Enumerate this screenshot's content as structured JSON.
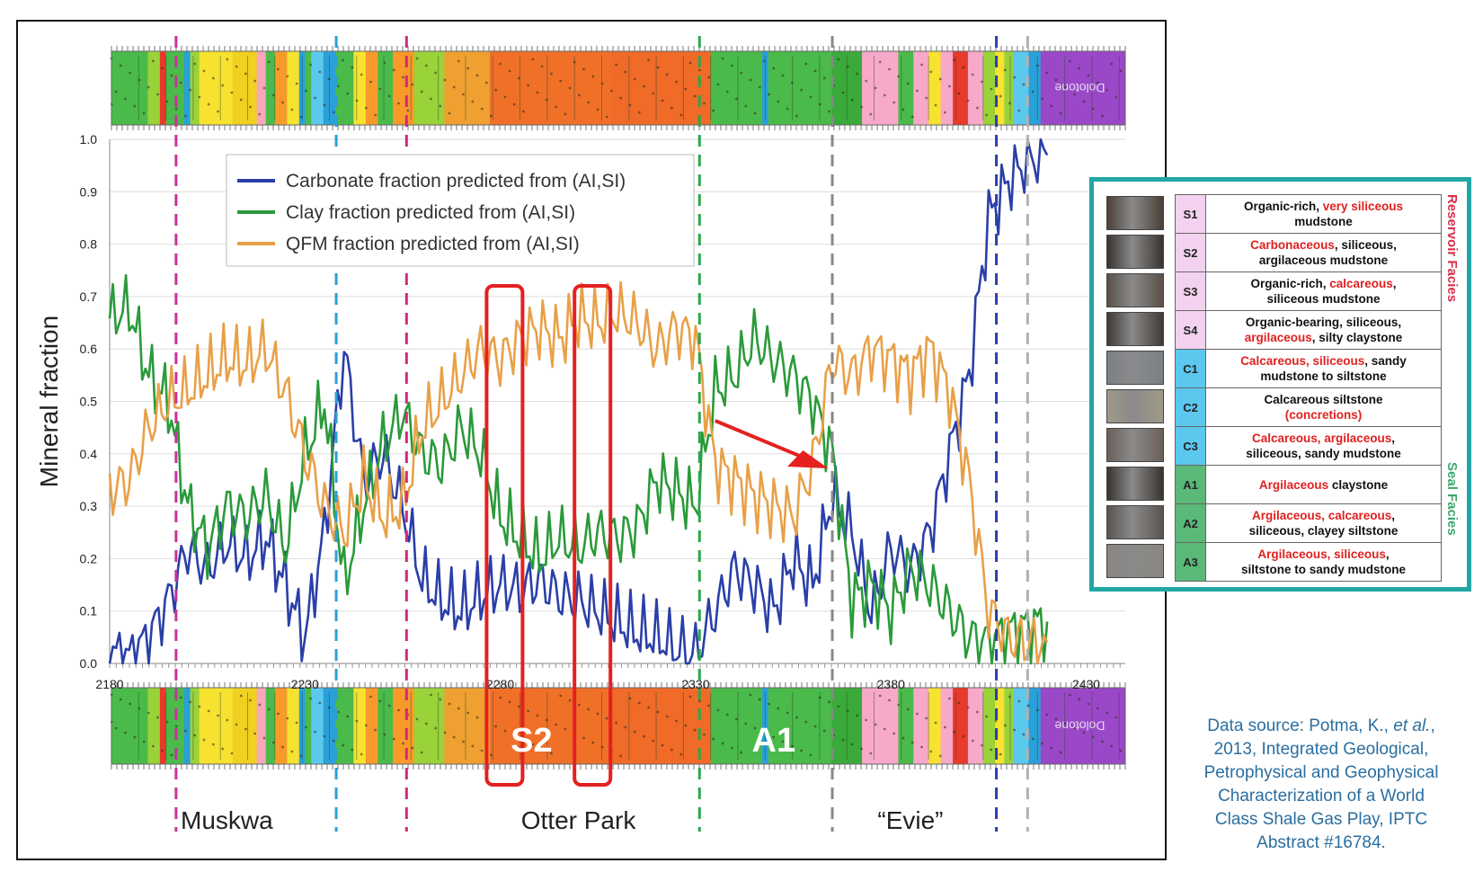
{
  "chart_data": {
    "type": "line",
    "title": "",
    "xlabel": "",
    "ylabel": "Mineral fraction",
    "xlim": [
      2180,
      2440
    ],
    "ylim": [
      0,
      1.0
    ],
    "x_ticks": [
      2180,
      2230,
      2280,
      2330,
      2380,
      2430
    ],
    "y_ticks": [
      0.0,
      0.1,
      0.2,
      0.3,
      0.4,
      0.5,
      0.6,
      0.7,
      0.8,
      0.9,
      1.0
    ],
    "y_tick_labels": [
      "0.0",
      "0.1",
      "0.2",
      "0.3",
      "0.4",
      "0.5",
      "0.6",
      "0.7",
      "0.8",
      "0.9",
      "1.0"
    ],
    "legend": [
      "Carbonate fraction predicted from (AI,SI)",
      "Clay fraction predicted from (AI,SI)",
      "QFM fraction predicted from (AI,SI)"
    ],
    "x": [
      2180,
      2185,
      2190,
      2195,
      2200,
      2205,
      2210,
      2215,
      2220,
      2225,
      2230,
      2235,
      2240,
      2245,
      2250,
      2255,
      2260,
      2265,
      2270,
      2275,
      2280,
      2285,
      2290,
      2295,
      2300,
      2305,
      2310,
      2315,
      2320,
      2325,
      2330,
      2335,
      2340,
      2345,
      2350,
      2355,
      2360,
      2365,
      2370,
      2375,
      2380,
      2385,
      2390,
      2395,
      2400,
      2405,
      2410,
      2415,
      2420
    ],
    "series": [
      {
        "name": "Carbonate fraction predicted from (AI,SI)",
        "color": "#2a3fa8",
        "values": [
          0.02,
          0.01,
          0.05,
          0.12,
          0.22,
          0.18,
          0.23,
          0.2,
          0.24,
          0.15,
          0.05,
          0.25,
          0.6,
          0.35,
          0.4,
          0.3,
          0.16,
          0.12,
          0.1,
          0.13,
          0.15,
          0.14,
          0.16,
          0.13,
          0.12,
          0.1,
          0.08,
          0.06,
          0.05,
          0.03,
          0.02,
          0.1,
          0.18,
          0.15,
          0.1,
          0.2,
          0.15,
          0.32,
          0.25,
          0.1,
          0.22,
          0.18,
          0.25,
          0.4,
          0.55,
          0.85,
          0.92,
          0.96,
          0.97
        ]
      },
      {
        "name": "Clay fraction predicted from (AI,SI)",
        "color": "#2a9a3a",
        "values": [
          0.66,
          0.68,
          0.55,
          0.5,
          0.3,
          0.22,
          0.3,
          0.28,
          0.32,
          0.22,
          0.4,
          0.5,
          0.15,
          0.3,
          0.42,
          0.48,
          0.4,
          0.38,
          0.45,
          0.4,
          0.28,
          0.24,
          0.2,
          0.24,
          0.22,
          0.25,
          0.24,
          0.26,
          0.35,
          0.33,
          0.3,
          0.52,
          0.55,
          0.62,
          0.58,
          0.55,
          0.5,
          0.4,
          0.12,
          0.15,
          0.1,
          0.18,
          0.15,
          0.1,
          0.05,
          0.04,
          0.06,
          0.07,
          0.08
        ]
      },
      {
        "name": "QFM fraction predicted from (AI,SI)",
        "color": "#e8a048",
        "values": [
          0.33,
          0.35,
          0.45,
          0.5,
          0.52,
          0.55,
          0.58,
          0.57,
          0.6,
          0.52,
          0.4,
          0.3,
          0.25,
          0.35,
          0.28,
          0.3,
          0.45,
          0.5,
          0.55,
          0.6,
          0.58,
          0.62,
          0.64,
          0.62,
          0.66,
          0.65,
          0.67,
          0.65,
          0.6,
          0.64,
          0.62,
          0.38,
          0.35,
          0.32,
          0.3,
          0.28,
          0.38,
          0.58,
          0.55,
          0.6,
          0.58,
          0.55,
          0.6,
          0.52,
          0.35,
          0.1,
          0.05,
          0.04,
          0.04
        ]
      }
    ],
    "boundaries": [
      {
        "x": 2197,
        "color": "#c8329a"
      },
      {
        "x": 2238,
        "color": "#2aa0d8"
      },
      {
        "x": 2256,
        "color": "#d02a7a"
      },
      {
        "x": 2331,
        "color": "#2aa84a"
      },
      {
        "x": 2365,
        "color": "#888888"
      },
      {
        "x": 2407,
        "color": "#2a3fa8"
      },
      {
        "x": 2415,
        "color": "#b0b0b0"
      }
    ],
    "formations": [
      "Muskwa",
      "Otter Park",
      "“Evie”"
    ],
    "zone_labels": [
      "S2",
      "A1"
    ],
    "strip_top_text": "Dolotone",
    "strip_bottom_text": "Dolotone"
  },
  "facies": {
    "reservoir_label": "Reservoir Facies",
    "seal_label": "Seal Facies",
    "rows": [
      {
        "code": "S1",
        "color": "#f2d2ee",
        "parts": [
          {
            "t": "Organic-rich, ",
            "h": false
          },
          {
            "t": "very siliceous",
            "h": true
          }
        ],
        "line2": [
          {
            "t": "mudstone",
            "h": false
          }
        ]
      },
      {
        "code": "S2",
        "color": "#f2d2ee",
        "parts": [
          {
            "t": "Carbonaceous",
            "h": true
          },
          {
            "t": ", siliceous,",
            "h": false
          }
        ],
        "line2": [
          {
            "t": "argilaceous mudstone",
            "h": false
          }
        ]
      },
      {
        "code": "S3",
        "color": "#f2d2ee",
        "parts": [
          {
            "t": "Organic-rich, ",
            "h": false
          },
          {
            "t": "calcareous",
            "h": true
          },
          {
            "t": ",",
            "h": false
          }
        ],
        "line2": [
          {
            "t": "siliceous mudstone",
            "h": false
          }
        ]
      },
      {
        "code": "S4",
        "color": "#f2d2ee",
        "parts": [
          {
            "t": "Organic-bearing, siliceous,",
            "h": false
          }
        ],
        "line2": [
          {
            "t": "argilaceous",
            "h": true
          },
          {
            "t": ", silty claystone",
            "h": false
          }
        ]
      },
      {
        "code": "C1",
        "color": "#5cc8ee",
        "parts": [
          {
            "t": "Calcareous, siliceous",
            "h": true
          },
          {
            "t": ", sandy",
            "h": false
          }
        ],
        "line2": [
          {
            "t": "mudstone to siltstone",
            "h": false
          }
        ]
      },
      {
        "code": "C2",
        "color": "#5cc8ee",
        "parts": [
          {
            "t": "Calcareous siltstone",
            "h": false
          }
        ],
        "line2": [
          {
            "t": "(concretions)",
            "h": true
          }
        ]
      },
      {
        "code": "C3",
        "color": "#5cc8ee",
        "parts": [
          {
            "t": "Calcareous, argilaceous",
            "h": true
          },
          {
            "t": ",",
            "h": false
          }
        ],
        "line2": [
          {
            "t": "siliceous, sandy mudstone",
            "h": false
          }
        ]
      },
      {
        "code": "A1",
        "color": "#5ab878",
        "parts": [
          {
            "t": "Argilaceous",
            "h": true
          },
          {
            "t": " claystone",
            "h": false
          }
        ],
        "line2": []
      },
      {
        "code": "A2",
        "color": "#5ab878",
        "parts": [
          {
            "t": "Argilaceous, calcareous",
            "h": true
          },
          {
            "t": ",",
            "h": false
          }
        ],
        "line2": [
          {
            "t": "siliceous, clayey siltstone",
            "h": false
          }
        ]
      },
      {
        "code": "A3",
        "color": "#5ab878",
        "parts": [
          {
            "t": "Argilaceous, siliceous",
            "h": true
          },
          {
            "t": ",",
            "h": false
          }
        ],
        "line2": [
          {
            "t": "siltstone to sandy mudstone",
            "h": false
          }
        ]
      }
    ]
  },
  "source": {
    "line1": "Data source: Potma, K., ",
    "line1_italic": "et al.",
    "line1_end": ",",
    "line2": "2013, Integrated Geological,",
    "line3": "Petrophysical and Geophysical",
    "line4": "Characterization of a World",
    "line5": "Class Shale Gas Play, IPTC",
    "line6": "Abstract #16784."
  }
}
